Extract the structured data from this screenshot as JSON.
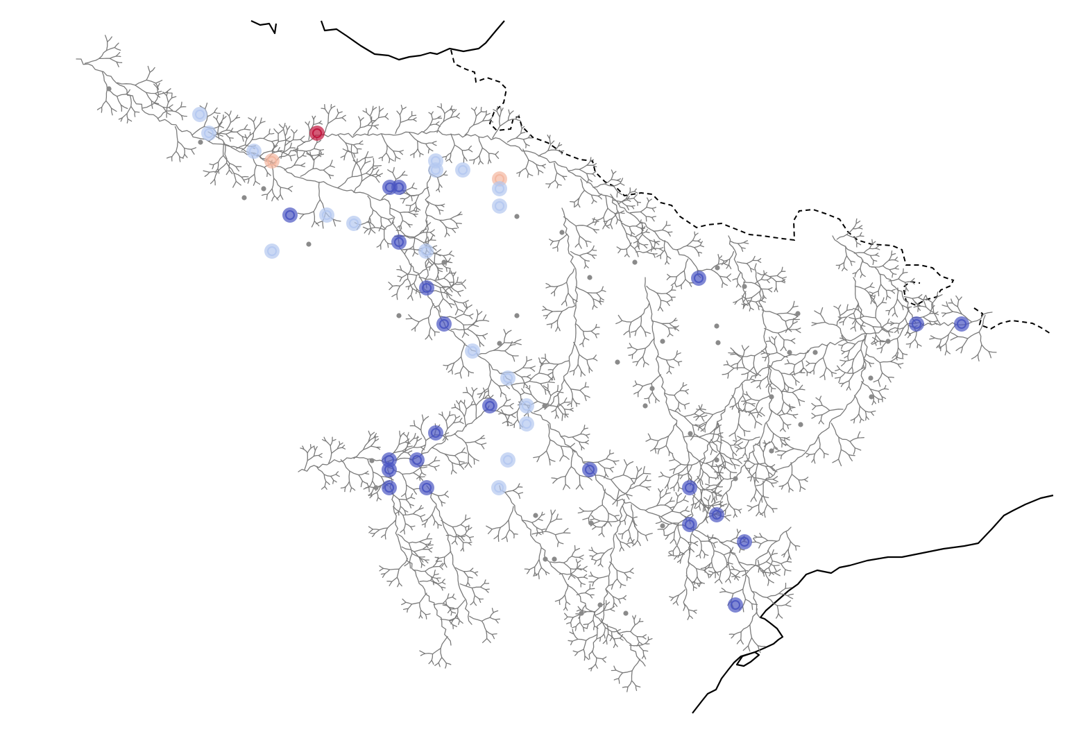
{
  "map": {
    "type": "river-network-station-map",
    "colors": {
      "coastline": "#000000",
      "border": "#000000",
      "river": "#7a7a7a",
      "gauge": "#8a8a8a",
      "station_colormap": {
        "strong_negative": "#4a55c2",
        "weak_negative": "#b4c8f0",
        "weak_positive": "#f3b69f",
        "strong_positive": "#c0143c"
      }
    },
    "station_classes_visible": [
      "strong_negative",
      "weak_negative",
      "weak_positive",
      "strong_positive"
    ]
  }
}
